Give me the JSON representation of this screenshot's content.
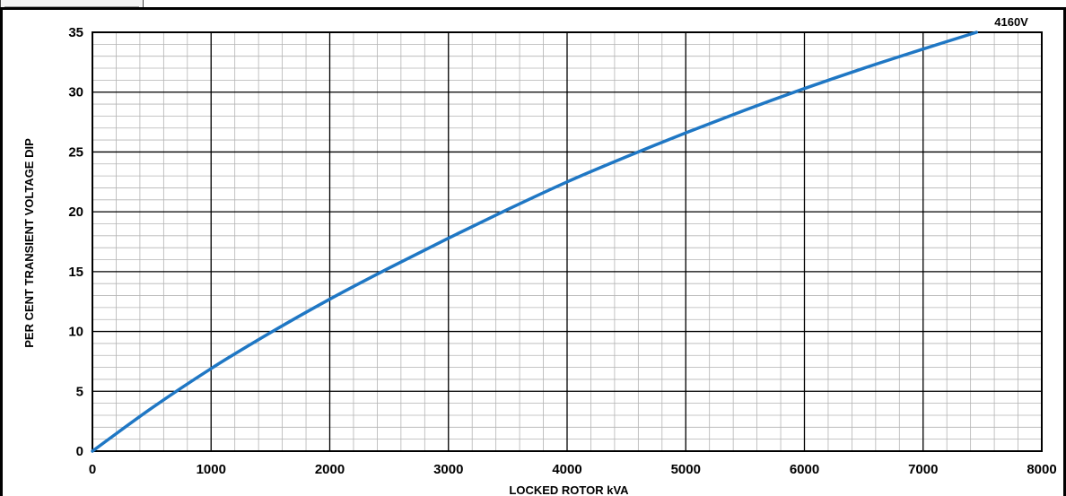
{
  "chart_data": {
    "type": "line",
    "title": "",
    "xlabel": "LOCKED ROTOR kVA",
    "ylabel": "PER CENT TRANSIENT VOLTAGE DIP",
    "xlim": [
      0,
      8000
    ],
    "ylim": [
      0,
      35
    ],
    "xticks": [
      0,
      1000,
      2000,
      3000,
      4000,
      5000,
      6000,
      7000,
      8000
    ],
    "yticks": [
      0,
      5,
      10,
      15,
      20,
      25,
      30,
      35
    ],
    "grid": {
      "major": true,
      "minor": true,
      "minor_x_step": 200,
      "minor_y_step": 1
    },
    "series": [
      {
        "name": "4160V",
        "color": "#1f77c4",
        "x": [
          0,
          500,
          1000,
          1500,
          2000,
          2500,
          3000,
          3500,
          4000,
          4500,
          5000,
          5500,
          6000,
          6500,
          7000,
          7450
        ],
        "y": [
          0,
          3.6,
          6.9,
          9.9,
          12.7,
          15.3,
          17.8,
          20.2,
          22.5,
          24.6,
          26.6,
          28.5,
          30.3,
          32.0,
          33.6,
          35.0
        ]
      }
    ]
  },
  "colors": {
    "major_grid": "#000000",
    "minor_grid": "#b4b4b4",
    "line": "#1f77c4",
    "frame": "#000000"
  }
}
